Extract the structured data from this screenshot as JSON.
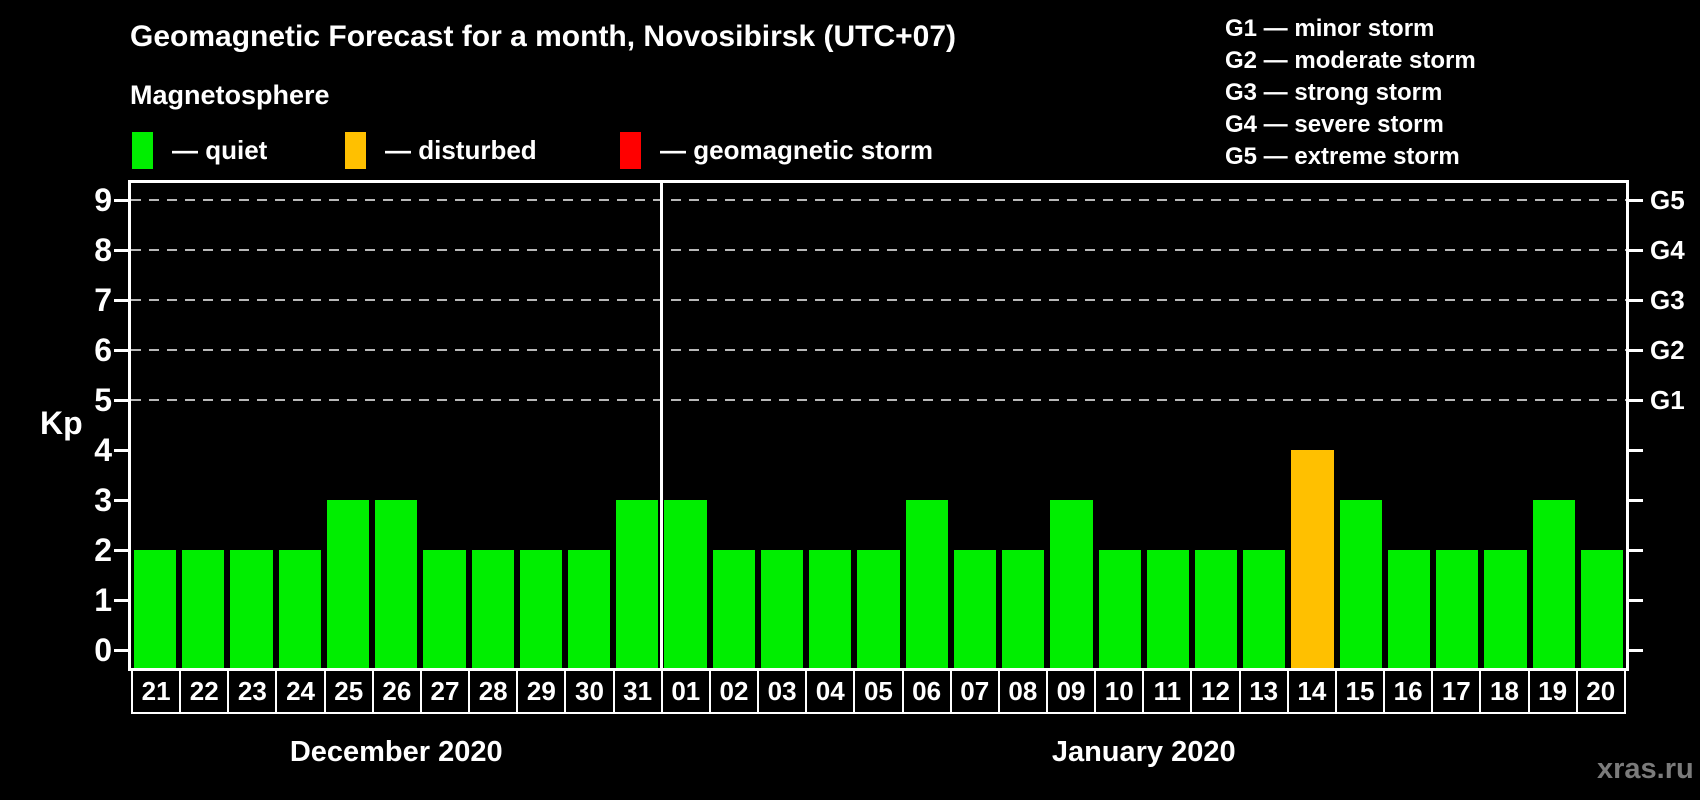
{
  "header": {
    "title": "Geomagnetic Forecast for a month, Novosibirsk (UTC+07)",
    "subtitle": "Magnetosphere"
  },
  "colors": {
    "quiet": "#00ee00",
    "disturbed": "#ffc000",
    "storm": "#ff0000",
    "grid": "#b8b8b8",
    "axis": "#ffffff",
    "watermark_text": "#7b7b7b"
  },
  "legend": {
    "items": [
      {
        "status": "quiet",
        "label": "— quiet"
      },
      {
        "status": "disturbed",
        "label": "— disturbed"
      },
      {
        "status": "storm",
        "label": "— geomagnetic storm"
      }
    ]
  },
  "g_legend": {
    "items": [
      "G1 — minor storm",
      "G2 — moderate storm",
      "G3 — strong storm",
      "G4 — severe storm",
      "G5 — extreme storm"
    ]
  },
  "chart_data": {
    "type": "bar",
    "ylabel": "Kp",
    "ylim": [
      0,
      9
    ],
    "yticks": [
      0,
      1,
      2,
      3,
      4,
      5,
      6,
      7,
      8,
      9
    ],
    "grid_levels_kp": [
      5,
      6,
      7,
      8,
      9
    ],
    "grid_style": "dashed",
    "right_axis_labels": [
      {
        "kp": 5,
        "label": "G1"
      },
      {
        "kp": 6,
        "label": "G2"
      },
      {
        "kp": 7,
        "label": "G3"
      },
      {
        "kp": 8,
        "label": "G4"
      },
      {
        "kp": 9,
        "label": "G5"
      }
    ],
    "months": [
      {
        "label": "December 2020",
        "days": [
          {
            "day": "21",
            "kp": 2,
            "status": "quiet"
          },
          {
            "day": "22",
            "kp": 2,
            "status": "quiet"
          },
          {
            "day": "23",
            "kp": 2,
            "status": "quiet"
          },
          {
            "day": "24",
            "kp": 2,
            "status": "quiet"
          },
          {
            "day": "25",
            "kp": 3,
            "status": "quiet"
          },
          {
            "day": "26",
            "kp": 3,
            "status": "quiet"
          },
          {
            "day": "27",
            "kp": 2,
            "status": "quiet"
          },
          {
            "day": "28",
            "kp": 2,
            "status": "quiet"
          },
          {
            "day": "29",
            "kp": 2,
            "status": "quiet"
          },
          {
            "day": "30",
            "kp": 2,
            "status": "quiet"
          },
          {
            "day": "31",
            "kp": 3,
            "status": "quiet"
          }
        ]
      },
      {
        "label": "January 2020",
        "days": [
          {
            "day": "01",
            "kp": 3,
            "status": "quiet"
          },
          {
            "day": "02",
            "kp": 2,
            "status": "quiet"
          },
          {
            "day": "03",
            "kp": 2,
            "status": "quiet"
          },
          {
            "day": "04",
            "kp": 2,
            "status": "quiet"
          },
          {
            "day": "05",
            "kp": 2,
            "status": "quiet"
          },
          {
            "day": "06",
            "kp": 3,
            "status": "quiet"
          },
          {
            "day": "07",
            "kp": 2,
            "status": "quiet"
          },
          {
            "day": "08",
            "kp": 2,
            "status": "quiet"
          },
          {
            "day": "09",
            "kp": 3,
            "status": "quiet"
          },
          {
            "day": "10",
            "kp": 2,
            "status": "quiet"
          },
          {
            "day": "11",
            "kp": 2,
            "status": "quiet"
          },
          {
            "day": "12",
            "kp": 2,
            "status": "quiet"
          },
          {
            "day": "13",
            "kp": 2,
            "status": "quiet"
          },
          {
            "day": "14",
            "kp": 4,
            "status": "disturbed"
          },
          {
            "day": "15",
            "kp": 3,
            "status": "quiet"
          },
          {
            "day": "16",
            "kp": 2,
            "status": "quiet"
          },
          {
            "day": "17",
            "kp": 2,
            "status": "quiet"
          },
          {
            "day": "18",
            "kp": 2,
            "status": "quiet"
          },
          {
            "day": "19",
            "kp": 3,
            "status": "quiet"
          },
          {
            "day": "20",
            "kp": 2,
            "status": "quiet"
          }
        ]
      }
    ]
  },
  "footer": {
    "watermark": "xras.ru"
  }
}
